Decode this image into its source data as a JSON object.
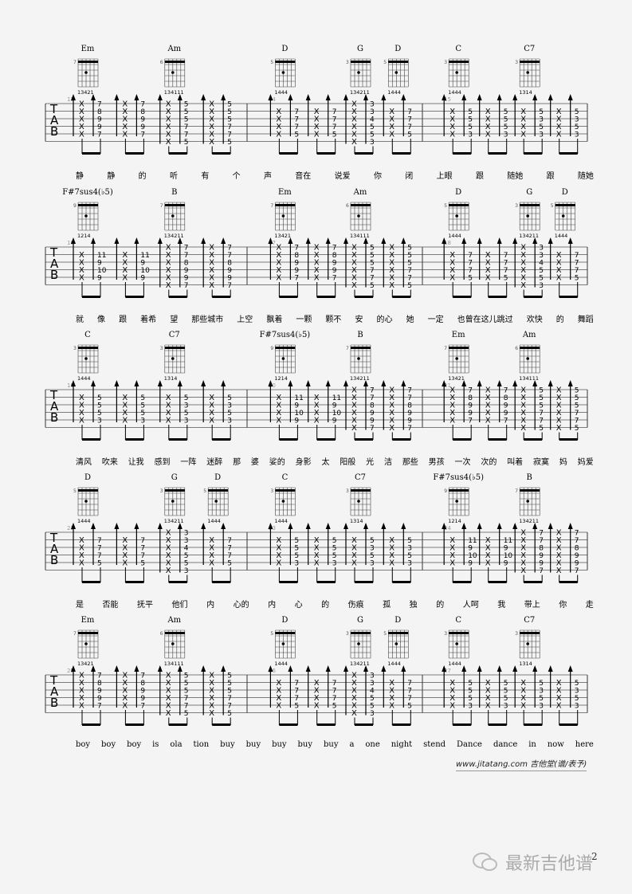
{
  "chords": {
    "Em": {
      "fret": "7",
      "fingers": "13421"
    },
    "Am": {
      "fret": "6",
      "fingers": "134111"
    },
    "D": {
      "fret": "5",
      "fingers": "1444"
    },
    "G": {
      "fret": "3",
      "fingers": "134211"
    },
    "C": {
      "fret": "3",
      "fingers": "1444"
    },
    "C7": {
      "fret": "3",
      "fingers": "1314"
    },
    "F#7sus4(♭5)": {
      "fret": "9",
      "fingers": "1214"
    },
    "B": {
      "fret": "7",
      "fingers": "134211"
    }
  },
  "shapes": {
    "Em": [
      "7",
      "8",
      "9",
      "9",
      "7",
      ""
    ],
    "Am": [
      "5",
      "5",
      "5",
      "7",
      "7",
      "5"
    ],
    "D": [
      "",
      "7",
      "7",
      "7",
      "5",
      ""
    ],
    "G": [
      "3",
      "3",
      "4",
      "5",
      "5",
      "3"
    ],
    "C": [
      "",
      "5",
      "5",
      "5",
      "3",
      ""
    ],
    "C7": [
      "",
      "5",
      "3",
      "5",
      "3",
      ""
    ],
    "F#7sus4(♭5)": [
      "",
      "11",
      "9",
      "10",
      "9",
      ""
    ],
    "B": [
      "7",
      "7",
      "8",
      "9",
      "9",
      "7"
    ]
  },
  "systems": [
    {
      "measures": [
        {
          "number": "13",
          "groups": [
            "Em",
            "Em",
            "Am",
            "Am"
          ]
        },
        {
          "number": "14",
          "groups": [
            "D",
            "D",
            "G",
            "D"
          ]
        },
        {
          "number": "15",
          "groups": [
            "C",
            "C",
            "C7",
            "C7"
          ]
        }
      ],
      "lyrics": [
        "静",
        "静",
        "的",
        "听",
        "有",
        "个",
        "声",
        "音在",
        "说爱",
        "你",
        "闭",
        "上眼",
        "跟",
        "随她",
        "跟",
        "随她"
      ]
    },
    {
      "measures": [
        {
          "number": "16",
          "groups": [
            "F#7sus4(♭5)",
            "F#7sus4(♭5)",
            "B",
            "B"
          ]
        },
        {
          "number": "17",
          "groups": [
            "Em",
            "Em",
            "Am",
            "Am"
          ]
        },
        {
          "number": "18",
          "groups": [
            "D",
            "D",
            "G",
            "D"
          ]
        }
      ],
      "lyrics": [
        "就",
        "像",
        "跟",
        "着希",
        "望",
        "那些城市",
        "上空",
        "飘着",
        "一颗",
        "颗不",
        "安",
        "的心",
        "她",
        "一定",
        "也曾在这儿跳过",
        "欢快",
        "的",
        "舞蹈"
      ]
    },
    {
      "measures": [
        {
          "number": "19",
          "groups": [
            "C",
            "C",
            "C7",
            "C7"
          ]
        },
        {
          "number": "20",
          "groups": [
            "F#7sus4(♭5)",
            "F#7sus4(♭5)",
            "B",
            "B"
          ]
        },
        {
          "number": "21",
          "groups": [
            "Em",
            "Em",
            "Am",
            "Am"
          ]
        }
      ],
      "lyrics": [
        "清风",
        "吹来",
        "让我",
        "感到",
        "一阵",
        "迷醉",
        "那",
        "婆",
        "娑的",
        "身影",
        "太",
        "阳般",
        "光",
        "洁",
        "那些",
        "男孩",
        "一次",
        "次的",
        "叫着",
        "寂寞",
        "妈",
        "妈爱"
      ]
    },
    {
      "measures": [
        {
          "number": "22",
          "groups": [
            "D",
            "D",
            "G",
            "D"
          ]
        },
        {
          "number": "23",
          "groups": [
            "C",
            "C",
            "C7",
            "C7"
          ]
        },
        {
          "number": "24",
          "groups": [
            "F#7sus4(♭5)",
            "F#7sus4(♭5)",
            "B",
            "B"
          ]
        }
      ],
      "lyrics": [
        "是",
        "否能",
        "抚平",
        "他们",
        "内",
        "心的",
        "内",
        "心",
        "的",
        "伤痕",
        "孤",
        "独",
        "的",
        "人呵",
        "我",
        "带上",
        "你",
        "走"
      ]
    },
    {
      "measures": [
        {
          "number": "25",
          "groups": [
            "Em",
            "Em",
            "Am",
            "Am"
          ]
        },
        {
          "number": "26",
          "groups": [
            "D",
            "D",
            "G",
            "D"
          ]
        },
        {
          "number": "27",
          "groups": [
            "C",
            "C",
            "C7",
            "C7"
          ]
        }
      ],
      "lyrics": [
        "boy",
        "boy",
        "boy",
        "is",
        "ola",
        "tion",
        "buy",
        "buy",
        "buy",
        "buy",
        "buy",
        "a",
        "one",
        "night",
        "stend",
        "Dance",
        "dance",
        "in",
        "now",
        "here"
      ]
    }
  ],
  "tab_clef": [
    "T",
    "A",
    "B"
  ],
  "footer": {
    "site": "www.jitatang.com",
    "brand": "吉他堂(谱/表予)"
  },
  "watermark": "最新吉他谱",
  "page_number": "2"
}
